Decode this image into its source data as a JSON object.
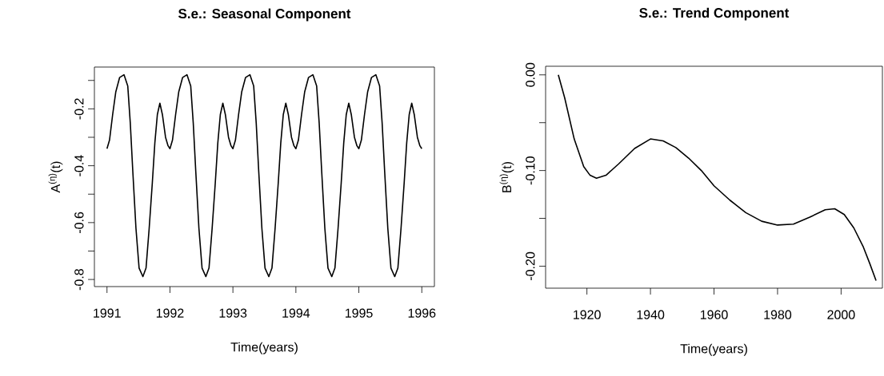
{
  "chart_data": [
    {
      "type": "line",
      "title": "S.e.: Seasonal Component",
      "xlabel": "Time(years)",
      "ylabel": "A$^{(η)}$(t)",
      "color": "#000000",
      "xlim": [
        1990.8,
        1996.2
      ],
      "ylim": [
        -0.825,
        -0.053
      ],
      "xticks": [
        1991,
        1992,
        1993,
        1994,
        1995,
        1996
      ],
      "yticks": [
        {
          "value": -0.8,
          "label": "-0.8"
        },
        {
          "value": -0.7,
          "label": null
        },
        {
          "value": -0.6,
          "label": "-0.6"
        },
        {
          "value": -0.5,
          "label": null
        },
        {
          "value": -0.4,
          "label": "-0.4"
        },
        {
          "value": -0.3,
          "label": null
        },
        {
          "value": -0.2,
          "label": "-0.2"
        },
        {
          "value": -0.1,
          "label": null
        }
      ],
      "x": [
        1991,
        1991.04,
        1991.09,
        1991.14,
        1991.2,
        1991.27,
        1991.33,
        1991.37,
        1991.41,
        1991.46,
        1991.51,
        1991.57,
        1991.62,
        1991.67,
        1991.72,
        1991.76,
        1991.8,
        1991.84,
        1991.88,
        1991.93,
        1991.97,
        1992,
        1992.04,
        1992.09,
        1992.14,
        1992.2,
        1992.27,
        1992.33,
        1992.37,
        1992.41,
        1992.46,
        1992.51,
        1992.57,
        1992.62,
        1992.67,
        1992.72,
        1992.76,
        1992.8,
        1992.84,
        1992.88,
        1992.93,
        1992.97,
        1993,
        1993.04,
        1993.09,
        1993.14,
        1993.2,
        1993.27,
        1993.33,
        1993.37,
        1993.41,
        1993.46,
        1993.51,
        1993.57,
        1993.62,
        1993.67,
        1993.72,
        1993.76,
        1993.8,
        1993.84,
        1993.88,
        1993.93,
        1993.97,
        1994,
        1994.04,
        1994.09,
        1994.14,
        1994.2,
        1994.27,
        1994.33,
        1994.37,
        1994.41,
        1994.46,
        1994.51,
        1994.57,
        1994.62,
        1994.67,
        1994.72,
        1994.76,
        1994.8,
        1994.84,
        1994.88,
        1994.93,
        1994.97,
        1995,
        1995.04,
        1995.09,
        1995.14,
        1995.2,
        1995.27,
        1995.33,
        1995.37,
        1995.41,
        1995.46,
        1995.51,
        1995.57,
        1995.62,
        1995.67,
        1995.72,
        1995.76,
        1995.8,
        1995.84,
        1995.88,
        1995.93,
        1995.97,
        1996
      ],
      "values": [
        -0.34,
        -0.31,
        -0.22,
        -0.14,
        -0.09,
        -0.08,
        -0.12,
        -0.25,
        -0.42,
        -0.62,
        -0.76,
        -0.79,
        -0.76,
        -0.62,
        -0.46,
        -0.32,
        -0.22,
        -0.18,
        -0.22,
        -0.3,
        -0.33,
        -0.34,
        -0.31,
        -0.22,
        -0.14,
        -0.09,
        -0.08,
        -0.12,
        -0.25,
        -0.42,
        -0.62,
        -0.76,
        -0.79,
        -0.76,
        -0.62,
        -0.46,
        -0.32,
        -0.22,
        -0.18,
        -0.22,
        -0.3,
        -0.33,
        -0.34,
        -0.31,
        -0.22,
        -0.14,
        -0.09,
        -0.08,
        -0.12,
        -0.25,
        -0.42,
        -0.62,
        -0.76,
        -0.79,
        -0.76,
        -0.62,
        -0.46,
        -0.32,
        -0.22,
        -0.18,
        -0.22,
        -0.3,
        -0.33,
        -0.34,
        -0.31,
        -0.22,
        -0.14,
        -0.09,
        -0.08,
        -0.12,
        -0.25,
        -0.42,
        -0.62,
        -0.76,
        -0.79,
        -0.76,
        -0.62,
        -0.46,
        -0.32,
        -0.22,
        -0.18,
        -0.22,
        -0.3,
        -0.33,
        -0.34,
        -0.31,
        -0.22,
        -0.14,
        -0.09,
        -0.08,
        -0.12,
        -0.25,
        -0.42,
        -0.62,
        -0.76,
        -0.79,
        -0.76,
        -0.62,
        -0.46,
        -0.32,
        -0.22,
        -0.18,
        -0.22,
        -0.3,
        -0.33,
        -0.34
      ]
    },
    {
      "type": "line",
      "title": "S.e.: Trend Component",
      "xlabel": "Time(years)",
      "ylabel": "B$^{(η)}$(t)",
      "color": "#000000",
      "xlim": [
        1907,
        2013
      ],
      "ylim": [
        -0.223,
        0.009
      ],
      "xticks": [
        1920,
        1940,
        1960,
        1980,
        2000
      ],
      "yticks": [
        {
          "value": -0.2,
          "label": "-0.20"
        },
        {
          "value": -0.15,
          "label": null
        },
        {
          "value": -0.1,
          "label": "-0.10"
        },
        {
          "value": -0.05,
          "label": null
        },
        {
          "value": 0,
          "label": "0.00"
        }
      ],
      "x": [
        1911,
        1913,
        1916,
        1919,
        1921,
        1923,
        1926,
        1930,
        1935,
        1940,
        1944,
        1948,
        1952,
        1956,
        1960,
        1965,
        1970,
        1975,
        1980,
        1985,
        1990,
        1995,
        1998,
        2001,
        2004,
        2007,
        2009,
        2011
      ],
      "values": [
        0,
        -0.024,
        -0.067,
        -0.096,
        -0.105,
        -0.108,
        -0.105,
        -0.093,
        -0.077,
        -0.067,
        -0.069,
        -0.076,
        -0.087,
        -0.1,
        -0.116,
        -0.131,
        -0.144,
        -0.153,
        -0.157,
        -0.156,
        -0.149,
        -0.141,
        -0.14,
        -0.146,
        -0.16,
        -0.18,
        -0.197,
        -0.215
      ]
    }
  ]
}
